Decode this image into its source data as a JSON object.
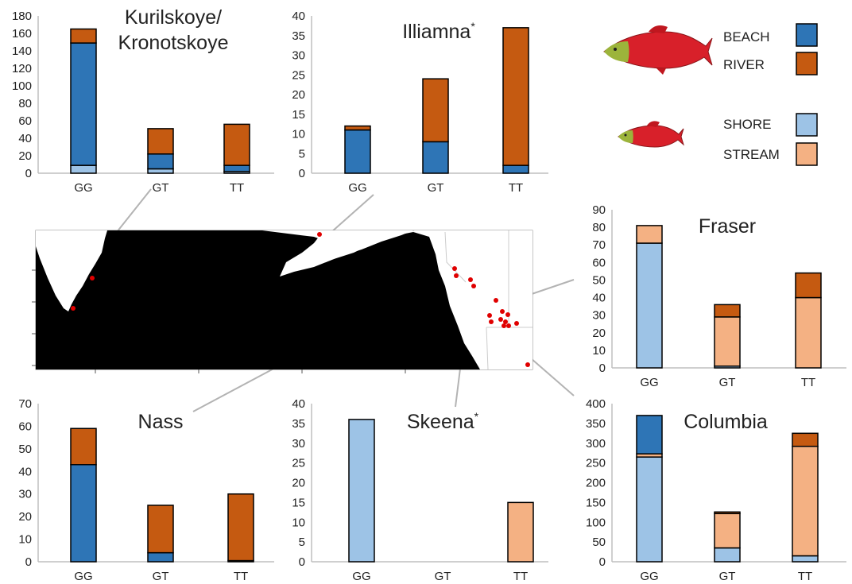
{
  "legend": {
    "large_fish": {
      "icon": "large-salmon-icon"
    },
    "small_fish": {
      "icon": "small-salmon-icon"
    },
    "items": [
      {
        "key": "BEACH",
        "label": "BEACH",
        "color": "#2e75b6"
      },
      {
        "key": "RIVER",
        "label": "RIVER",
        "color": "#c55a11"
      },
      {
        "key": "SHORE",
        "label": "SHORE",
        "color": "#9dc3e6"
      },
      {
        "key": "STREAM",
        "label": "STREAM",
        "color": "#f4b183"
      }
    ]
  },
  "colors": {
    "BEACH": "#2e75b6",
    "RIVER": "#c55a11",
    "SHORE": "#9dc3e6",
    "STREAM": "#f4b183",
    "map_land": "#000000",
    "map_sea": "#ffffff",
    "site_dot": "#e00000",
    "leader_line": "#b3b3b3"
  },
  "map": {
    "icon": "north-pacific-map"
  },
  "chart_data": [
    {
      "id": "kurilskoye",
      "type": "bar",
      "stacked": true,
      "title": "Kurilskoye/",
      "title_line2": "Kronotskoye",
      "title_mark": "",
      "categories": [
        "GG",
        "GT",
        "TT"
      ],
      "ylim": [
        0,
        180
      ],
      "yticks": [
        0,
        20,
        40,
        60,
        80,
        100,
        120,
        140,
        160,
        180
      ],
      "stacks": [
        [
          {
            "series": "SHORE",
            "value": 9
          },
          {
            "series": "BEACH",
            "value": 140
          },
          {
            "series": "RIVER",
            "value": 16
          }
        ],
        [
          {
            "series": "SHORE",
            "value": 5
          },
          {
            "series": "BEACH",
            "value": 17
          },
          {
            "series": "RIVER",
            "value": 29
          }
        ],
        [
          {
            "series": "SHORE",
            "value": 2
          },
          {
            "series": "BEACH",
            "value": 7
          },
          {
            "series": "RIVER",
            "value": 47
          }
        ]
      ]
    },
    {
      "id": "illiamna",
      "type": "bar",
      "stacked": true,
      "title": "Illiamna",
      "title_line2": "",
      "title_mark": "*",
      "categories": [
        "GG",
        "GT",
        "TT"
      ],
      "ylim": [
        0,
        40
      ],
      "yticks": [
        0,
        5,
        10,
        15,
        20,
        25,
        30,
        35,
        40
      ],
      "stacks": [
        [
          {
            "series": "BEACH",
            "value": 11
          },
          {
            "series": "RIVER",
            "value": 1
          }
        ],
        [
          {
            "series": "BEACH",
            "value": 8
          },
          {
            "series": "RIVER",
            "value": 16
          }
        ],
        [
          {
            "series": "BEACH",
            "value": 2
          },
          {
            "series": "RIVER",
            "value": 35
          }
        ]
      ]
    },
    {
      "id": "fraser",
      "type": "bar",
      "stacked": true,
      "title": "Fraser",
      "title_line2": "",
      "title_mark": "",
      "categories": [
        "GG",
        "GT",
        "TT"
      ],
      "ylim": [
        0,
        90
      ],
      "yticks": [
        0,
        10,
        20,
        30,
        40,
        50,
        60,
        70,
        80,
        90
      ],
      "stacks": [
        [
          {
            "series": "SHORE",
            "value": 71
          },
          {
            "series": "STREAM",
            "value": 10
          }
        ],
        [
          {
            "series": "SHORE",
            "value": 1
          },
          {
            "series": "STREAM",
            "value": 28
          },
          {
            "series": "RIVER",
            "value": 7
          }
        ],
        [
          {
            "series": "STREAM",
            "value": 40
          },
          {
            "series": "RIVER",
            "value": 14
          }
        ]
      ]
    },
    {
      "id": "nass",
      "type": "bar",
      "stacked": true,
      "title": "Nass",
      "title_line2": "",
      "title_mark": "",
      "categories": [
        "GG",
        "GT",
        "TT"
      ],
      "ylim": [
        0,
        70
      ],
      "yticks": [
        0,
        10,
        20,
        30,
        40,
        50,
        60,
        70
      ],
      "stacks": [
        [
          {
            "series": "BEACH",
            "value": 43
          },
          {
            "series": "RIVER",
            "value": 16
          }
        ],
        [
          {
            "series": "BEACH",
            "value": 4
          },
          {
            "series": "RIVER",
            "value": 21
          }
        ],
        [
          {
            "series": "BEACH",
            "value": 0.5
          },
          {
            "series": "RIVER",
            "value": 29.5
          }
        ]
      ]
    },
    {
      "id": "skeena",
      "type": "bar",
      "stacked": true,
      "title": "Skeena",
      "title_line2": "",
      "title_mark": "*",
      "categories": [
        "GG",
        "GT",
        "TT"
      ],
      "ylim": [
        0,
        40
      ],
      "yticks": [
        0,
        5,
        10,
        15,
        20,
        25,
        30,
        35,
        40
      ],
      "stacks": [
        [
          {
            "series": "SHORE",
            "value": 36
          }
        ],
        [],
        [
          {
            "series": "STREAM",
            "value": 15
          }
        ]
      ]
    },
    {
      "id": "columbia",
      "type": "bar",
      "stacked": true,
      "title": "Columbia",
      "title_line2": "",
      "title_mark": "",
      "categories": [
        "GG",
        "GT",
        "TT"
      ],
      "ylim": [
        0,
        400
      ],
      "yticks": [
        0,
        50,
        100,
        150,
        200,
        250,
        300,
        350,
        400
      ],
      "stacks": [
        [
          {
            "series": "SHORE",
            "value": 265
          },
          {
            "series": "STREAM",
            "value": 8
          },
          {
            "series": "BEACH",
            "value": 97
          }
        ],
        [
          {
            "series": "SHORE",
            "value": 35
          },
          {
            "series": "STREAM",
            "value": 87
          },
          {
            "series": "RIVER",
            "value": 4
          }
        ],
        [
          {
            "series": "SHORE",
            "value": 15
          },
          {
            "series": "STREAM",
            "value": 277
          },
          {
            "series": "RIVER",
            "value": 33
          }
        ]
      ]
    }
  ]
}
